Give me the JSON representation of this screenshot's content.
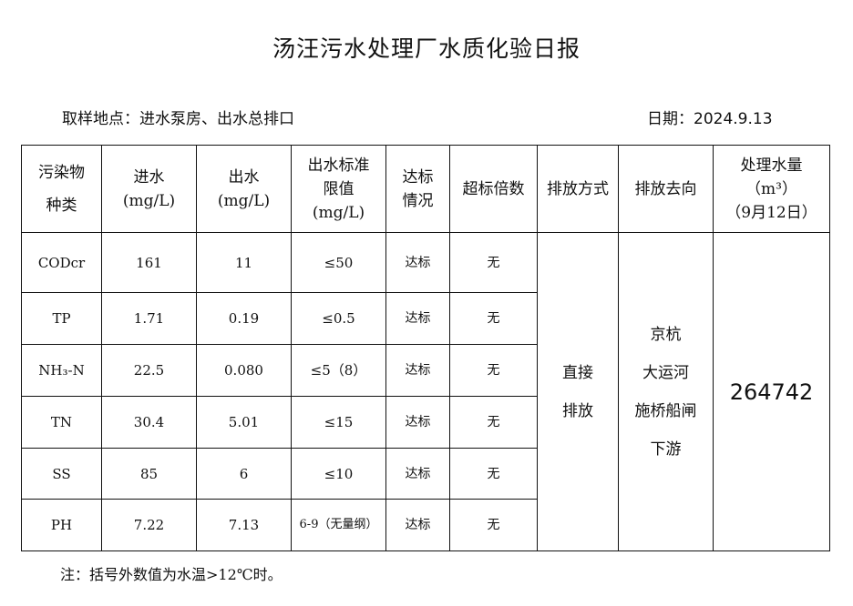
{
  "title": "汤汪污水处理厂水质化验日报",
  "location": "取样地点：进水泵房、出水总排口",
  "date": "日期：2024.9.13",
  "headers": [
    "污染物种类",
    "进水(mg/L)",
    "出水(mg/L)",
    "出水标准限值(mg/L)",
    "达标情况",
    "超标倍数",
    "排放方式",
    "排放去向",
    "处理水量（m³）（9月12日）"
  ],
  "header_lines": [
    [
      "污染物",
      "种类"
    ],
    [
      "进水",
      "(mg/L)"
    ],
    [
      "出水",
      "(mg/L)"
    ],
    [
      "出水标准",
      "限值",
      "(mg/L)"
    ],
    [
      "达标",
      "情况"
    ],
    [
      "超标倍数"
    ],
    [
      "排放方式"
    ],
    [
      "排放去向"
    ],
    [
      "处理水量",
      "（m³）",
      "（9月12日）"
    ]
  ],
  "rows": [
    {
      "pollutant": "CODcr",
      "in": "161",
      "out": "11",
      "limit": "≤50",
      "status": "达标",
      "exceed": "无"
    },
    {
      "pollutant": "TP",
      "in": "1.71",
      "out": "0.19",
      "limit": "≤0.5",
      "status": "达标",
      "exceed": "无"
    },
    {
      "pollutant": "NH₃-N",
      "in": "22.5",
      "out": "0.080",
      "limit": "≤5（8）",
      "status": "达标",
      "exceed": "无"
    },
    {
      "pollutant": "TN",
      "in": "30.4",
      "out": "5.01",
      "limit": "≤15",
      "status": "达标",
      "exceed": "无"
    },
    {
      "pollutant": "SS",
      "in": "85",
      "out": "6",
      "limit": "≤10",
      "status": "达标",
      "exceed": "无"
    },
    {
      "pollutant": "PH",
      "in": "7.22",
      "out": "7.13",
      "limit": "6-9（无量纲）",
      "status": "达标",
      "exceed": "无"
    }
  ],
  "discharge_method": [
    "直接",
    "排放"
  ],
  "discharge_destination": [
    "京杭",
    "大运河",
    "施桥船闸",
    "下游"
  ],
  "treated_volume": "264742",
  "note": "注：括号外数值为水温>12℃时。"
}
